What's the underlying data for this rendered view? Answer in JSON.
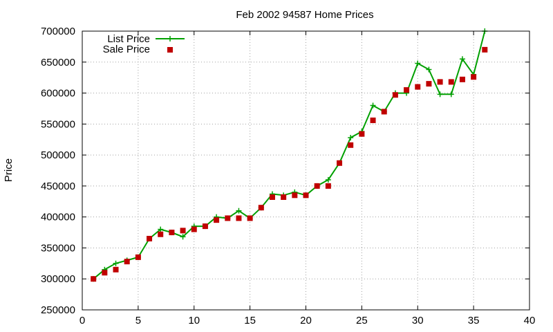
{
  "chart_data": {
    "type": "line",
    "title": "Feb 2002 94587 Home Prices",
    "xlabel": "",
    "ylabel": "Price",
    "xlim": [
      0,
      40
    ],
    "ylim": [
      250000,
      700000
    ],
    "xticks": [
      0,
      5,
      10,
      15,
      20,
      25,
      30,
      35,
      40
    ],
    "yticks": [
      250000,
      300000,
      350000,
      400000,
      450000,
      500000,
      550000,
      600000,
      650000,
      700000
    ],
    "grid": true,
    "legend_position": "top-left",
    "series": [
      {
        "name": "List Price",
        "style": "line+cross",
        "color": "#00a000",
        "x": [
          1,
          2,
          3,
          4,
          5,
          6,
          7,
          8,
          9,
          10,
          11,
          12,
          13,
          14,
          15,
          16,
          17,
          18,
          19,
          20,
          21,
          22,
          23,
          24,
          25,
          26,
          27,
          28,
          29,
          30,
          31,
          32,
          33,
          34,
          35,
          36
        ],
        "y": [
          300000,
          315000,
          325000,
          330000,
          335000,
          365000,
          380000,
          375000,
          368000,
          385000,
          385000,
          400000,
          398000,
          410000,
          398000,
          415000,
          437000,
          435000,
          440000,
          435000,
          450000,
          460000,
          487000,
          528000,
          538000,
          580000,
          570000,
          600000,
          600000,
          648000,
          638000,
          598000,
          598000,
          655000,
          630000,
          700000
        ]
      },
      {
        "name": "Sale Price",
        "style": "square",
        "color": "#c00000",
        "x": [
          1,
          2,
          3,
          4,
          5,
          6,
          7,
          8,
          9,
          10,
          11,
          12,
          13,
          14,
          15,
          16,
          17,
          18,
          19,
          20,
          21,
          22,
          23,
          24,
          25,
          26,
          27,
          28,
          29,
          30,
          31,
          32,
          33,
          34,
          35,
          36
        ],
        "y": [
          300000,
          310000,
          315000,
          328000,
          335000,
          365000,
          372000,
          375000,
          378000,
          380000,
          385000,
          395000,
          398000,
          398000,
          398000,
          415000,
          432000,
          432000,
          435000,
          435000,
          450000,
          450000,
          487000,
          516000,
          534000,
          556000,
          570000,
          597000,
          605000,
          610000,
          615000,
          618000,
          618000,
          622000,
          626000,
          670000
        ]
      }
    ]
  }
}
